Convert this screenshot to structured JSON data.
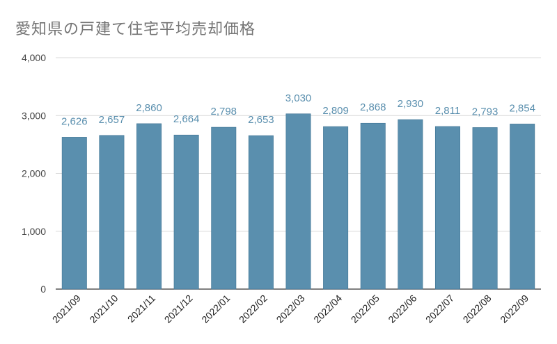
{
  "chart_data": {
    "type": "bar",
    "title": "愛知県の戸建て住宅平均売却価格",
    "xlabel": "",
    "ylabel": "",
    "categories": [
      "2021/09",
      "2021/10",
      "2021/11",
      "2021/12",
      "2022/01",
      "2022/02",
      "2022/03",
      "2022/04",
      "2022/05",
      "2022/06",
      "2022/07",
      "2022/08",
      "2022/09"
    ],
    "values": [
      2626,
      2657,
      2860,
      2664,
      2798,
      2653,
      3030,
      2809,
      2868,
      2930,
      2811,
      2793,
      2854
    ],
    "value_labels": [
      "2,626",
      "2,657",
      "2,860",
      "2,664",
      "2,798",
      "2,653",
      "3,030",
      "2,809",
      "2,868",
      "2,930",
      "2,811",
      "2,793",
      "2,854"
    ],
    "ylim": [
      0,
      4000
    ],
    "yticks": [
      0,
      1000,
      2000,
      3000,
      4000
    ],
    "ytick_labels": [
      "0",
      "1,000",
      "2,000",
      "3,000",
      "4,000"
    ],
    "grid": true,
    "bar_color": "#5a8fae",
    "label_color": "#5a8fae"
  }
}
